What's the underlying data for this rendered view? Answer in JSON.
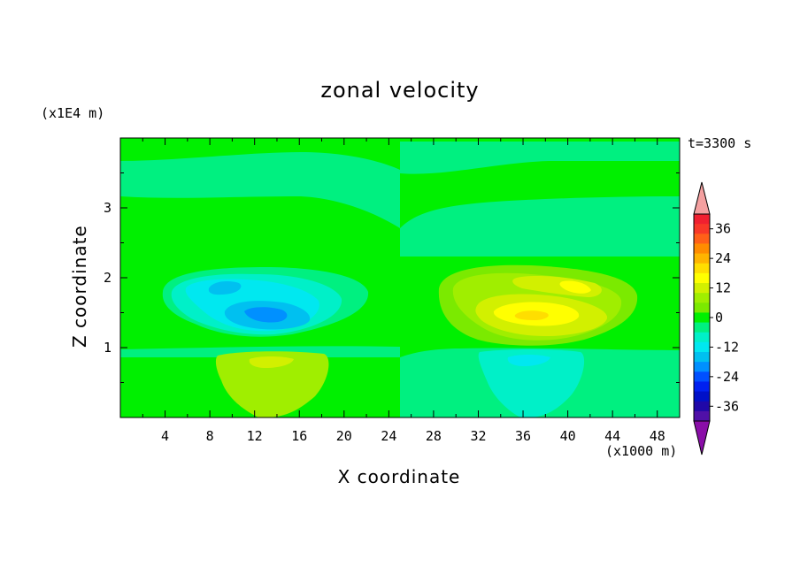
{
  "chart_data": {
    "type": "heatmap",
    "title": "zonal velocity",
    "xlabel": "X coordinate",
    "ylabel": "Z coordinate",
    "x_unit": "(x1000 m)",
    "y_unit": "(x1E4 m)",
    "time_label": "t=3300 s",
    "xlim": [
      0,
      50
    ],
    "ylim": [
      0,
      4
    ],
    "x_ticks": [
      4,
      8,
      12,
      16,
      20,
      24,
      28,
      32,
      36,
      40,
      44,
      48
    ],
    "y_ticks": [
      1,
      2,
      3
    ],
    "colorbar": {
      "min": -42,
      "max": 42,
      "step": 4,
      "labeled_values": [
        36,
        24,
        12,
        0,
        -12,
        -24,
        -36
      ],
      "over_color": "#f4a0a0",
      "under_color": "#8a0ea8",
      "levels": [
        {
          "min": 38,
          "max": 42,
          "color": "#f02030"
        },
        {
          "min": 34,
          "max": 38,
          "color": "#f83828"
        },
        {
          "min": 30,
          "max": 34,
          "color": "#ff6018"
        },
        {
          "min": 26,
          "max": 30,
          "color": "#ff8c00"
        },
        {
          "min": 22,
          "max": 26,
          "color": "#ffb400"
        },
        {
          "min": 18,
          "max": 22,
          "color": "#ffde00"
        },
        {
          "min": 14,
          "max": 18,
          "color": "#ffff00"
        },
        {
          "min": 10,
          "max": 14,
          "color": "#d2f000"
        },
        {
          "min": 6,
          "max": 10,
          "color": "#a0ee00"
        },
        {
          "min": 2,
          "max": 6,
          "color": "#7bea00"
        },
        {
          "min": -2,
          "max": 2,
          "color": "#00f000"
        },
        {
          "min": -6,
          "max": -2,
          "color": "#00f080"
        },
        {
          "min": -10,
          "max": -6,
          "color": "#00f0c8"
        },
        {
          "min": -14,
          "max": -10,
          "color": "#00e8f0"
        },
        {
          "min": -18,
          "max": -14,
          "color": "#00c0f0"
        },
        {
          "min": -22,
          "max": -18,
          "color": "#0090ff"
        },
        {
          "min": -26,
          "max": -22,
          "color": "#0050ff"
        },
        {
          "min": -30,
          "max": -26,
          "color": "#0020f0"
        },
        {
          "min": -34,
          "max": -30,
          "color": "#0010c8"
        },
        {
          "min": -38,
          "max": -34,
          "color": "#2008a8"
        },
        {
          "min": -42,
          "max": -38,
          "color": "#5010a8"
        }
      ]
    },
    "field_features": [
      {
        "kind": "background",
        "value": 0,
        "note": "left half, x 0-25"
      },
      {
        "kind": "band",
        "value": -4,
        "x_range": [
          0,
          25
        ],
        "z_range": [
          2.8,
          3.65
        ]
      },
      {
        "kind": "band",
        "value": -4,
        "x_range": [
          0,
          50
        ],
        "z_range": [
          0,
          1.0
        ]
      },
      {
        "kind": "blob",
        "center": [
          13,
          1.6
        ],
        "min_value": -24,
        "note": "negative core, upper left"
      },
      {
        "kind": "blob",
        "center": [
          13,
          0.7
        ],
        "max_value": 12,
        "note": "positive lobe, lower left"
      },
      {
        "kind": "blob",
        "center": [
          37,
          1.6
        ],
        "max_value": 16,
        "note": "positive core, upper right"
      },
      {
        "kind": "blob",
        "center": [
          37,
          0.7
        ],
        "min_value": -12,
        "note": "negative lobe, lower right"
      }
    ]
  }
}
